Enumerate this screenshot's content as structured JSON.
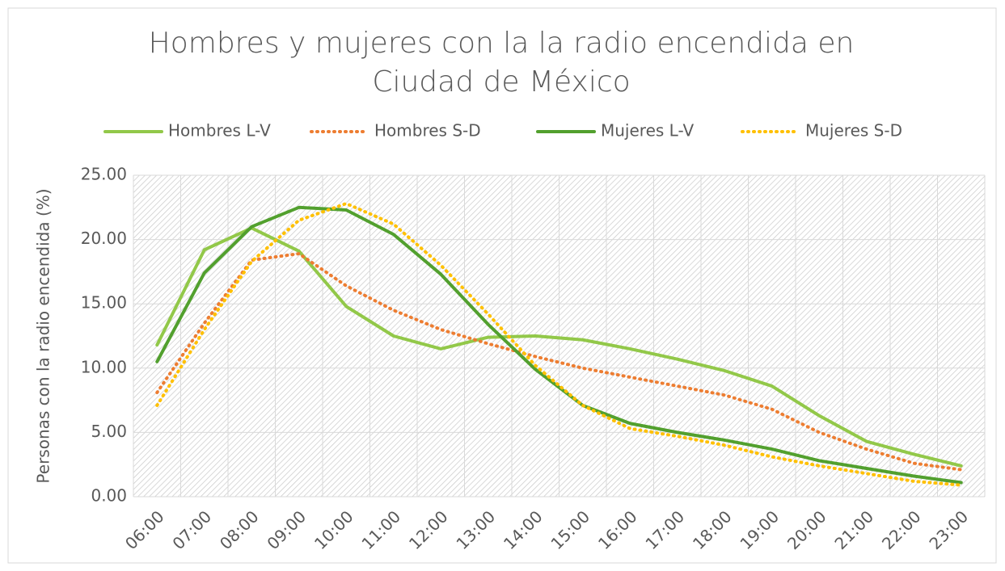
{
  "chart_data": {
    "type": "line",
    "title": "Hombres y mujeres con la la radio encendida en Ciudad de México",
    "ylabel": "Personas con la radio encendida (%)",
    "categories": [
      "06:00",
      "07:00",
      "08:00",
      "09:00",
      "10:00",
      "11:00",
      "12:00",
      "13:00",
      "14:00",
      "15:00",
      "16:00",
      "17:00",
      "18:00",
      "19:00",
      "20:00",
      "21:00",
      "22:00",
      "23:00"
    ],
    "series": [
      {
        "name": "Hombres L-V",
        "color": "#92c849",
        "dashed": false,
        "values": [
          11.8,
          19.2,
          20.9,
          19.1,
          14.8,
          12.5,
          11.5,
          12.4,
          12.5,
          12.2,
          11.5,
          10.7,
          9.8,
          8.6,
          6.3,
          4.3,
          3.3,
          2.4
        ]
      },
      {
        "name": "Hombres S-D",
        "color": "#ed7d31",
        "dashed": true,
        "values": [
          8.1,
          13.5,
          18.4,
          18.9,
          16.4,
          14.5,
          13.0,
          11.9,
          10.9,
          10.0,
          9.3,
          8.6,
          7.9,
          6.8,
          5.0,
          3.7,
          2.6,
          2.1
        ]
      },
      {
        "name": "Mujeres L-V",
        "color": "#52a02e",
        "dashed": false,
        "values": [
          10.5,
          17.4,
          21.0,
          22.5,
          22.3,
          20.4,
          17.3,
          13.4,
          9.9,
          7.1,
          5.7,
          5.0,
          4.4,
          3.7,
          2.8,
          2.2,
          1.6,
          1.1
        ]
      },
      {
        "name": "Mujeres S-D",
        "color": "#ffc000",
        "dashed": true,
        "values": [
          7.1,
          13.0,
          18.3,
          21.5,
          22.8,
          21.2,
          18.0,
          14.2,
          10.2,
          7.1,
          5.3,
          4.7,
          4.0,
          3.1,
          2.4,
          1.8,
          1.2,
          0.9
        ]
      }
    ],
    "ylim": [
      0,
      25
    ],
    "yticks": [
      {
        "value": 0,
        "label": "0.00"
      },
      {
        "value": 5,
        "label": "5.00"
      },
      {
        "value": 10,
        "label": "10.00"
      },
      {
        "value": 15,
        "label": "15.00"
      },
      {
        "value": 20,
        "label": "20.00"
      },
      {
        "value": 25,
        "label": "25.00"
      }
    ],
    "grid": true,
    "legend": "top"
  }
}
